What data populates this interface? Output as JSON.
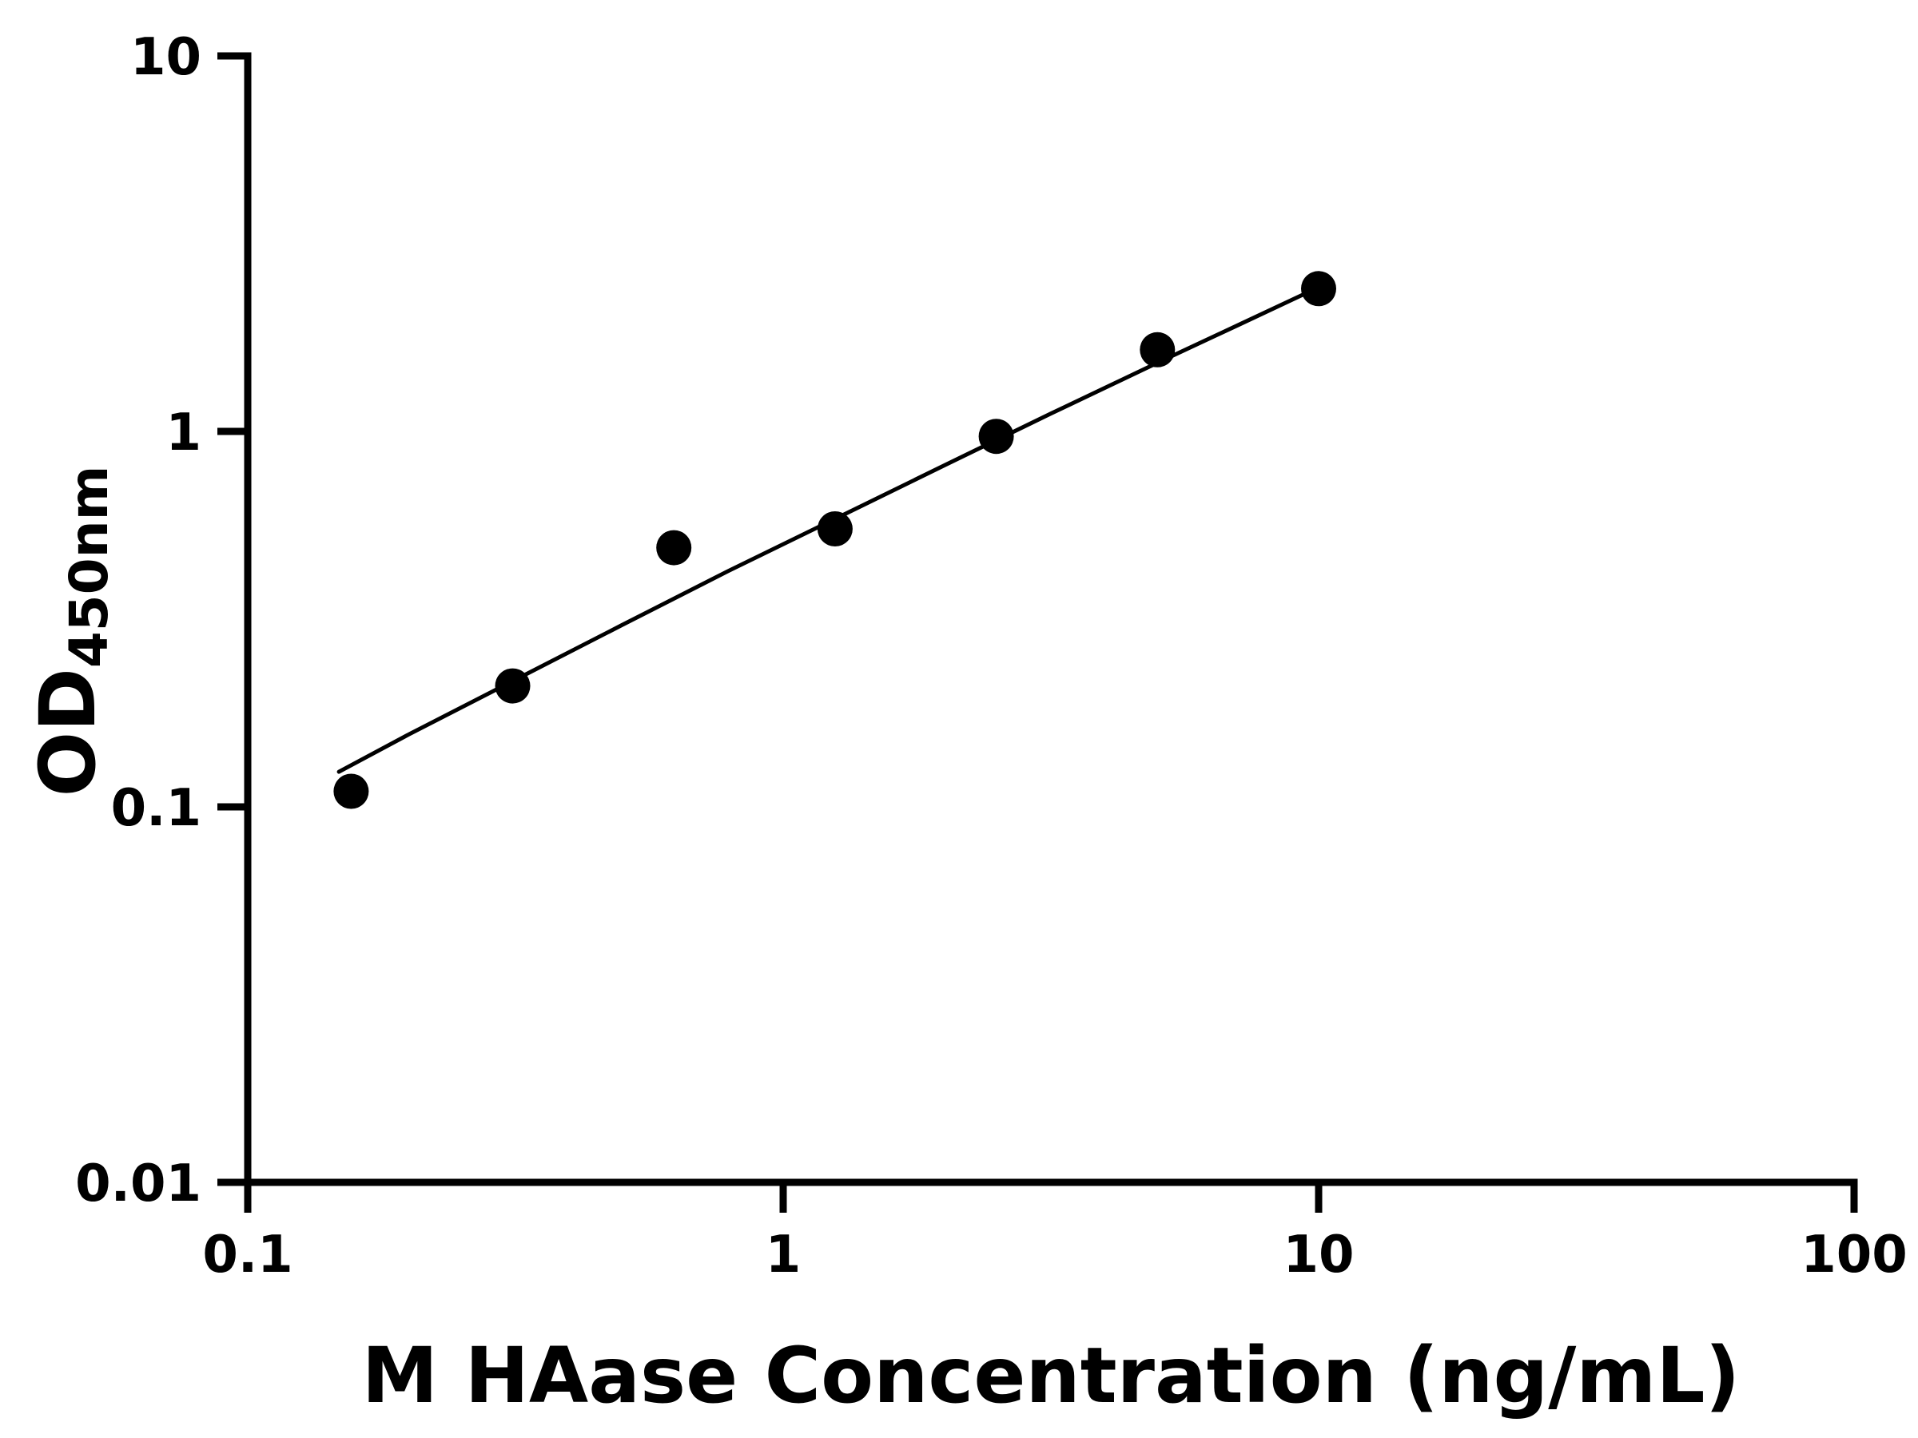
{
  "figure": {
    "background": "#ffffff",
    "foreground": "#000000"
  },
  "chart_data": {
    "type": "scatter",
    "title": "",
    "xlabel": "M HAase Concentration (ng/mL)",
    "ylabel": "OD450nm",
    "ylabel_main": "OD",
    "ylabel_sub": "450nm",
    "x_scale": "log",
    "y_scale": "log",
    "xlim": [
      0.1,
      100
    ],
    "ylim": [
      0.01,
      10
    ],
    "grid": false,
    "legend": false,
    "x_ticks": [
      {
        "value": 0.1,
        "label": "0.1"
      },
      {
        "value": 1,
        "label": "1"
      },
      {
        "value": 10,
        "label": "10"
      },
      {
        "value": 100,
        "label": "100"
      }
    ],
    "y_ticks": [
      {
        "value": 0.01,
        "label": "0.01"
      },
      {
        "value": 0.1,
        "label": "0.1"
      },
      {
        "value": 1,
        "label": "1"
      },
      {
        "value": 10,
        "label": "10"
      }
    ],
    "series": [
      {
        "name": "fit-line",
        "type": "line",
        "color": "#000000",
        "x": [
          0.148,
          0.2,
          0.316,
          0.5,
          0.79,
          1.26,
          2.0,
          3.16,
          5.01,
          7.08,
          10
        ],
        "y": [
          0.124,
          0.156,
          0.218,
          0.305,
          0.425,
          0.588,
          0.812,
          1.115,
          1.525,
          1.92,
          2.42
        ]
      },
      {
        "name": "standard-points",
        "type": "scatter",
        "marker": "circle",
        "color": "#000000",
        "x": [
          0.156,
          0.3125,
          0.625,
          1.25,
          2.5,
          5,
          10
        ],
        "y": [
          0.11,
          0.21,
          0.49,
          0.55,
          0.97,
          1.65,
          2.4
        ]
      }
    ]
  }
}
